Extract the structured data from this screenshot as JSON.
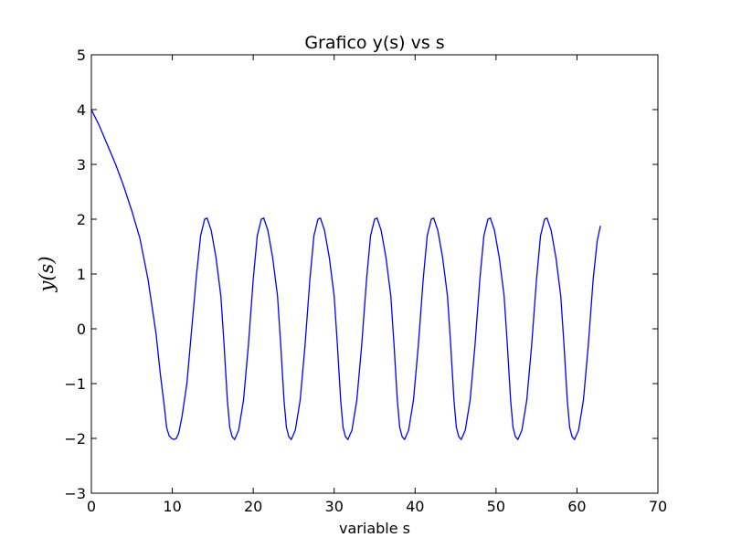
{
  "chart_data": {
    "type": "line",
    "title": "Grafico y(s) vs s",
    "xlabel": "variable s",
    "ylabel": "y(s)",
    "xlim": [
      0,
      70
    ],
    "ylim": [
      -3,
      5
    ],
    "xticks": [
      0,
      10,
      20,
      30,
      40,
      50,
      60,
      70
    ],
    "yticks": [
      5,
      4,
      3,
      2,
      1,
      0,
      -1,
      -2,
      -3
    ],
    "xtick_labels": [
      "0",
      "10",
      "20",
      "30",
      "40",
      "50",
      "60",
      "70"
    ],
    "ytick_labels": [
      "5",
      "4",
      "3",
      "2",
      "1",
      "0",
      "−1",
      "−2",
      "−3"
    ],
    "grid": false,
    "line_color": "#0000ff",
    "series": [
      {
        "x": [
          0,
          1,
          2,
          3,
          4,
          5,
          6,
          7,
          7.5,
          8,
          8.5,
          9,
          9.3,
          9.6,
          9.9,
          10.2,
          10.5,
          10.8,
          11.2,
          11.8,
          12.4,
          13.0,
          13.5,
          14.0,
          14.3,
          14.8,
          15.4,
          16.0,
          16.4,
          16.8,
          17.1,
          17.4,
          17.7,
          18.2,
          18.8,
          19.4,
          20.0,
          20.5,
          21.0,
          21.3,
          21.8,
          22.4,
          23.0,
          23.4,
          23.8,
          24.1,
          24.4,
          24.7,
          25.2,
          25.8,
          26.4,
          27.0,
          27.5,
          28.0,
          28.3,
          28.8,
          29.4,
          30.0,
          30.4,
          30.8,
          31.1,
          31.4,
          31.7,
          32.2,
          32.8,
          33.4,
          34.0,
          34.5,
          35.0,
          35.3,
          35.8,
          36.4,
          37.0,
          37.4,
          37.8,
          38.1,
          38.4,
          38.7,
          39.2,
          39.8,
          40.4,
          41.0,
          41.5,
          42.0,
          42.3,
          42.8,
          43.4,
          44.0,
          44.4,
          44.8,
          45.1,
          45.4,
          45.7,
          46.2,
          46.8,
          47.4,
          48.0,
          48.5,
          49.0,
          49.3,
          49.8,
          50.4,
          51.0,
          51.4,
          51.8,
          52.1,
          52.4,
          52.7,
          53.2,
          53.8,
          54.4,
          55.0,
          55.5,
          56.0,
          56.3,
          56.8,
          57.4,
          58.0,
          58.4,
          58.8,
          59.1,
          59.4,
          59.7,
          60.2,
          60.8,
          61.4,
          62.0,
          62.5,
          62.9
        ],
        "y": [
          4.0,
          3.7,
          3.35,
          3.0,
          2.6,
          2.15,
          1.65,
          0.9,
          0.4,
          -0.1,
          -0.8,
          -1.4,
          -1.8,
          -1.95,
          -2.0,
          -2.02,
          -2.0,
          -1.9,
          -1.6,
          -1.0,
          0.0,
          1.0,
          1.7,
          2.0,
          2.02,
          1.8,
          1.3,
          0.6,
          -0.3,
          -1.3,
          -1.8,
          -1.97,
          -2.02,
          -1.85,
          -1.3,
          -0.3,
          0.9,
          1.7,
          2.0,
          2.02,
          1.8,
          1.3,
          0.6,
          -0.3,
          -1.3,
          -1.8,
          -1.97,
          -2.02,
          -1.85,
          -1.3,
          -0.3,
          0.9,
          1.7,
          2.0,
          2.02,
          1.8,
          1.3,
          0.6,
          -0.3,
          -1.3,
          -1.8,
          -1.97,
          -2.02,
          -1.85,
          -1.3,
          -0.3,
          0.9,
          1.7,
          2.0,
          2.02,
          1.8,
          1.3,
          0.6,
          -0.3,
          -1.3,
          -1.8,
          -1.97,
          -2.02,
          -1.85,
          -1.3,
          -0.3,
          0.9,
          1.7,
          2.0,
          2.02,
          1.8,
          1.3,
          0.6,
          -0.3,
          -1.3,
          -1.8,
          -1.97,
          -2.02,
          -1.85,
          -1.3,
          -0.3,
          0.9,
          1.7,
          2.0,
          2.02,
          1.8,
          1.3,
          0.6,
          -0.3,
          -1.3,
          -1.8,
          -1.97,
          -2.02,
          -1.85,
          -1.3,
          -0.3,
          0.9,
          1.7,
          2.0,
          2.02,
          1.8,
          1.3,
          0.6,
          -0.3,
          -1.3,
          -1.8,
          -1.97,
          -2.02,
          -1.85,
          -1.3,
          -0.3,
          0.9,
          1.6,
          1.88
        ]
      }
    ]
  }
}
